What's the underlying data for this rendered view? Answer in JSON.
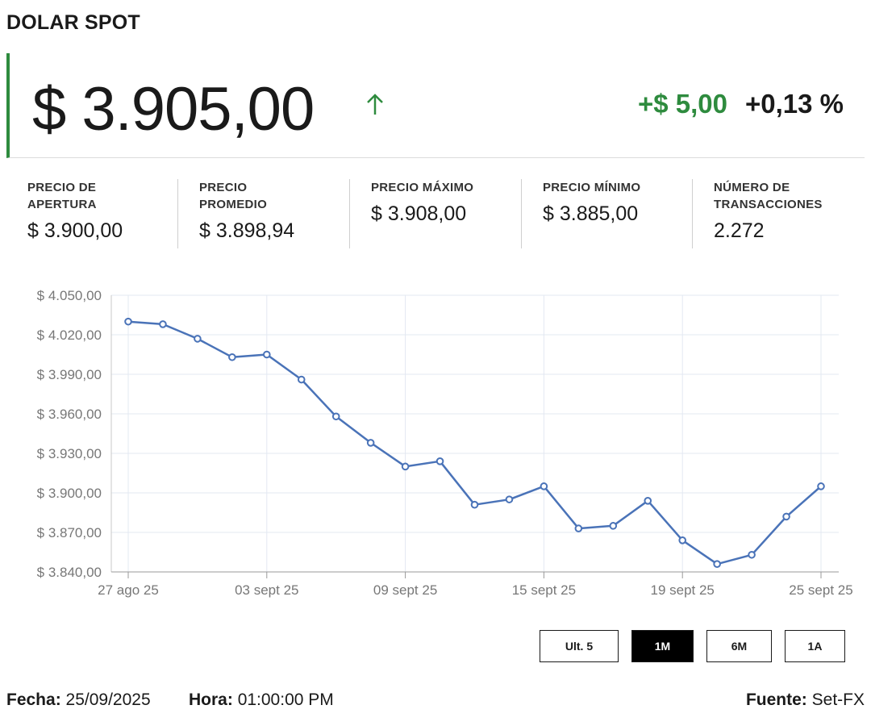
{
  "title": "DOLAR SPOT",
  "price": "$ 3.905,00",
  "change": "+$ 5,00",
  "change_pct": "+0,13 %",
  "colors": {
    "positive": "#2e8b3e",
    "line": "#4a73b8",
    "grid": "#e3e8f2"
  },
  "icons": {
    "trend": "arrow-up-icon"
  },
  "stats": [
    {
      "label_1": "PRECIO DE",
      "label_2": "APERTURA",
      "value": "$ 3.900,00"
    },
    {
      "label_1": "PRECIO",
      "label_2": "PROMEDIO",
      "value": "$ 3.898,94"
    },
    {
      "label_1": "PRECIO MÁXIMO",
      "label_2": "",
      "value": "$ 3.908,00"
    },
    {
      "label_1": "PRECIO MÍNIMO",
      "label_2": "",
      "value": "$ 3.885,00"
    },
    {
      "label_1": "NÚMERO DE",
      "label_2": "TRANSACCIONES",
      "value": "2.272"
    }
  ],
  "chart_data": {
    "type": "line",
    "x_tick_labels": [
      "27 ago 25",
      "03 sept 25",
      "09 sept 25",
      "15 sept 25",
      "19 sept 25",
      "25 sept 25"
    ],
    "x_tick_indices": [
      0,
      4,
      8,
      12,
      16,
      20
    ],
    "y_tick_labels": [
      "$ 4.050,00",
      "$ 4.020,00",
      "$ 3.990,00",
      "$ 3.960,00",
      "$ 3.930,00",
      "$ 3.900,00",
      "$ 3.870,00",
      "$ 3.840,00"
    ],
    "ylim": [
      3840,
      4050
    ],
    "values": [
      4030,
      4028,
      4017,
      4003,
      4005,
      3986,
      3958,
      3938,
      3920,
      3924,
      3891,
      3895,
      3905,
      3873,
      3875,
      3894,
      3864,
      3846,
      3853,
      3882,
      3905
    ],
    "grid": true
  },
  "buttons": [
    {
      "label": "Ult. 5",
      "active": false
    },
    {
      "label": "1M",
      "active": true
    },
    {
      "label": "6M",
      "active": false
    },
    {
      "label": "1A",
      "active": false
    }
  ],
  "footer": {
    "date_label": "Fecha:",
    "date": "25/09/2025",
    "time_label": "Hora:",
    "time": "01:00:00 PM",
    "source_label": "Fuente:",
    "source": "Set-FX"
  }
}
